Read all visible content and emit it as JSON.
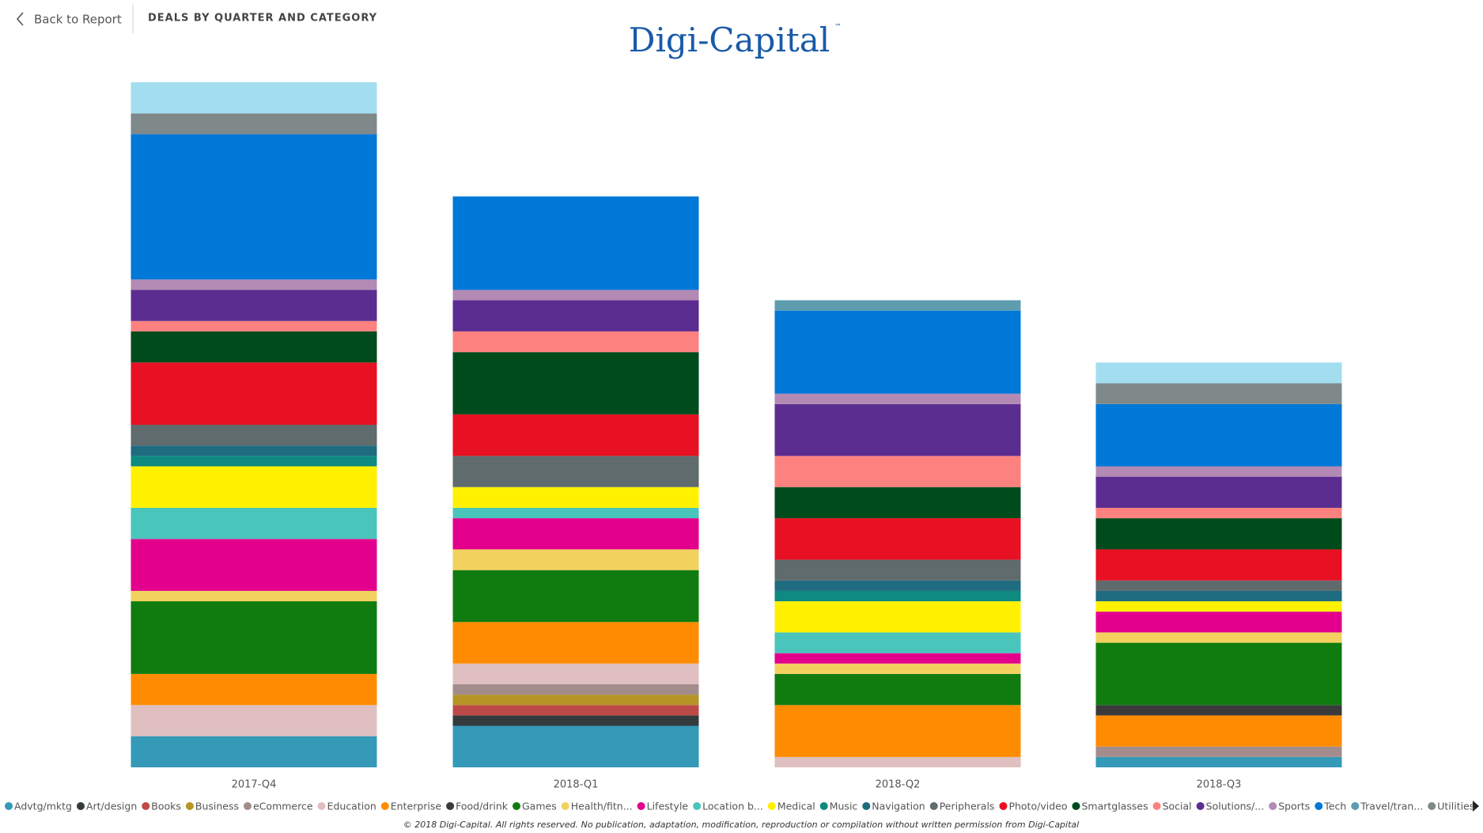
{
  "header": {
    "back": "Back to Report",
    "title": "DEALS BY QUARTER AND CATEGORY",
    "logo": "Digi-Capital",
    "logo_mark": "™"
  },
  "chart_data": {
    "type": "stacked-bar",
    "categories": [
      "2017-Q4",
      "2018-Q1",
      "2018-Q2",
      "2018-Q3"
    ],
    "series": [
      {
        "name": "Advtg/mktg",
        "color": "#3599b8",
        "values": [
          3,
          4,
          0,
          1
        ]
      },
      {
        "name": "Art/design",
        "color": "#333b3d",
        "values": [
          0,
          1,
          0,
          0
        ]
      },
      {
        "name": "Books",
        "color": "#be4a47",
        "values": [
          0,
          1,
          0,
          0
        ]
      },
      {
        "name": "Business",
        "color": "#b59525",
        "values": [
          0,
          1,
          0,
          0
        ]
      },
      {
        "name": "eCommerce",
        "color": "#a38c8c",
        "values": [
          0,
          1,
          0,
          1
        ]
      },
      {
        "name": "Education",
        "color": "#dfbfbf",
        "values": [
          3,
          2,
          1,
          0
        ]
      },
      {
        "name": "Enterprise",
        "color": "#ff8c00",
        "values": [
          3,
          4,
          5,
          3
        ]
      },
      {
        "name": "Food/drink",
        "color": "#3a3a3a",
        "values": [
          0,
          0,
          0,
          1
        ]
      },
      {
        "name": "Games",
        "color": "#107c10",
        "values": [
          7,
          5,
          3,
          6
        ]
      },
      {
        "name": "Health/fitn...",
        "color": "#f2d15f",
        "values": [
          1,
          2,
          1,
          1
        ]
      },
      {
        "name": "Lifestyle",
        "color": "#e3008c",
        "values": [
          5,
          3,
          1,
          2
        ]
      },
      {
        "name": "Location b...",
        "color": "#4ac5bb",
        "values": [
          3,
          1,
          2,
          0
        ]
      },
      {
        "name": "Medical",
        "color": "#fff100",
        "values": [
          4,
          2,
          3,
          1
        ]
      },
      {
        "name": "Music",
        "color": "#0e8a80",
        "values": [
          1,
          0,
          1,
          0
        ]
      },
      {
        "name": "Navigation",
        "color": "#1f6b80",
        "values": [
          1,
          0,
          1,
          1
        ]
      },
      {
        "name": "Peripherals",
        "color": "#5f6b6d",
        "values": [
          2,
          3,
          2,
          1
        ]
      },
      {
        "name": "Photo/video",
        "color": "#e81123",
        "values": [
          6,
          4,
          4,
          3
        ]
      },
      {
        "name": "Smartglasses",
        "color": "#004b1c",
        "values": [
          3,
          6,
          3,
          3
        ]
      },
      {
        "name": "Social",
        "color": "#fd817e",
        "values": [
          1,
          2,
          3,
          1
        ]
      },
      {
        "name": "Solutions/...",
        "color": "#5c2d91",
        "values": [
          3,
          3,
          5,
          3
        ]
      },
      {
        "name": "Sports",
        "color": "#b28ab3",
        "values": [
          1,
          1,
          1,
          1
        ]
      },
      {
        "name": "Tech",
        "color": "#0078d7",
        "values": [
          14,
          9,
          8,
          6
        ]
      },
      {
        "name": "Travel/tran...",
        "color": "#5e9db0",
        "values": [
          0,
          0,
          1,
          0
        ]
      },
      {
        "name": "Utilities",
        "color": "#7f898a",
        "values": [
          2,
          0,
          0,
          2
        ]
      },
      {
        "name": null,
        "color": "#a3def0",
        "values": [
          3,
          0,
          0,
          2
        ]
      }
    ]
  },
  "footer": "© 2018 Digi-Capital. All rights reserved. No publication, adaptation, modification, reproduction or compilation without written permission from Digi-Capital"
}
